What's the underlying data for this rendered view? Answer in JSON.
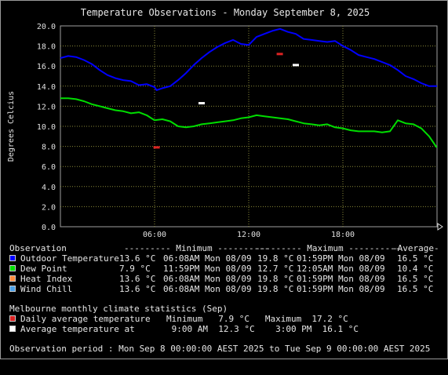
{
  "chart_data": {
    "type": "line",
    "title": "Temperature Observations - Monday September 8, 2025",
    "ylabel": "Degrees Celcius",
    "ylim": [
      0,
      20
    ],
    "yticks": [
      "0.0",
      "2.0",
      "4.0",
      "6.0",
      "8.0",
      "10.0",
      "12.0",
      "14.0",
      "16.0",
      "18.0",
      "20.0"
    ],
    "xlim": [
      0,
      24
    ],
    "xticks": [
      {
        "x": 6,
        "label": "06:00"
      },
      {
        "x": 12,
        "label": "12:00"
      },
      {
        "x": 18,
        "label": "18:00"
      }
    ],
    "grid": true,
    "series": [
      {
        "name": "Outdoor Temperature",
        "color": "#0000ff",
        "x": [
          0,
          0.5,
          1,
          1.5,
          2,
          2.5,
          3,
          3.5,
          4,
          4.5,
          5,
          5.5,
          6,
          6.13,
          6.5,
          7,
          7.5,
          8,
          8.5,
          9,
          9.5,
          10,
          10.5,
          11,
          11.5,
          12,
          12.5,
          13,
          13.5,
          14,
          14.5,
          15,
          15.5,
          16,
          16.5,
          17,
          17.5,
          18,
          18.5,
          19,
          19.5,
          20,
          20.5,
          21,
          21.5,
          22,
          22.5,
          23,
          23.5,
          24
        ],
        "y": [
          16.8,
          17.0,
          16.9,
          16.6,
          16.2,
          15.6,
          15.1,
          14.8,
          14.6,
          14.5,
          14.1,
          14.2,
          13.9,
          13.6,
          13.8,
          14.0,
          14.6,
          15.3,
          16.1,
          16.8,
          17.4,
          17.9,
          18.3,
          18.6,
          18.2,
          18.1,
          18.9,
          19.2,
          19.5,
          19.7,
          19.4,
          19.2,
          18.7,
          18.6,
          18.5,
          18.4,
          18.5,
          18.0,
          17.6,
          17.1,
          16.9,
          16.7,
          16.4,
          16.1,
          15.6,
          15.0,
          14.7,
          14.3,
          14.0,
          14.0
        ]
      },
      {
        "name": "Dew Point",
        "color": "#00dd00",
        "x": [
          0,
          0.5,
          1,
          1.5,
          2,
          2.5,
          3,
          3.5,
          4,
          4.5,
          5,
          5.5,
          6,
          6.5,
          7,
          7.5,
          8,
          8.5,
          9,
          9.5,
          10,
          10.5,
          11,
          11.5,
          12,
          12.5,
          13,
          13.5,
          14,
          14.5,
          15,
          15.5,
          16,
          16.5,
          17,
          17.5,
          18,
          18.5,
          19,
          19.5,
          20,
          20.5,
          21,
          21.5,
          22,
          22.5,
          23,
          23.5,
          23.98
        ],
        "y": [
          12.8,
          12.8,
          12.7,
          12.5,
          12.2,
          12.0,
          11.8,
          11.6,
          11.5,
          11.3,
          11.4,
          11.1,
          10.6,
          10.7,
          10.5,
          10.0,
          9.9,
          10.0,
          10.2,
          10.3,
          10.4,
          10.5,
          10.6,
          10.8,
          10.9,
          11.1,
          11.0,
          10.9,
          10.8,
          10.7,
          10.5,
          10.3,
          10.2,
          10.1,
          10.2,
          9.9,
          9.8,
          9.6,
          9.5,
          9.5,
          9.5,
          9.4,
          9.5,
          10.6,
          10.3,
          10.2,
          9.8,
          9.0,
          7.9
        ]
      }
    ],
    "climate": [
      {
        "name": "Daily average temperature",
        "color": "#dd2222",
        "markers": [
          {
            "x": 6.13,
            "y": 7.9
          },
          {
            "x": 13.98,
            "y": 17.2
          }
        ]
      },
      {
        "name": "Average temperature at",
        "color": "#ffffff",
        "markers": [
          {
            "x": 9.0,
            "y": 12.3
          },
          {
            "x": 15.0,
            "y": 16.1
          }
        ]
      }
    ]
  },
  "stats": {
    "header": {
      "observation": "Observation",
      "min": "--------- Minimum ----------",
      "max": "--------- Maximum ----------",
      "avg": "-Average-"
    },
    "rows": [
      {
        "name": "Outdoor Temperature",
        "color": "#0000ff",
        "min_val": "13.6 °C",
        "min_time": "06:08AM Mon 08/09",
        "max_val": "19.8 °C",
        "max_time": "01:59PM Mon 08/09",
        "avg": "16.5 °C"
      },
      {
        "name": "Dew Point",
        "color": "#00dd00",
        "min_val": "7.9 °C",
        "min_time": "11:59PM Mon 08/09",
        "max_val": "12.7 °C",
        "max_time": "12:05AM Mon 08/09",
        "avg": "10.4 °C"
      },
      {
        "name": "Heat Index",
        "color": "#ff8c3c",
        "min_val": "13.6 °C",
        "min_time": "06:08AM Mon 08/09",
        "max_val": "19.8 °C",
        "max_time": "01:59PM Mon 08/09",
        "avg": "16.5 °C"
      },
      {
        "name": "Wind Chill",
        "color": "#4aa0e8",
        "min_val": "13.6 °C",
        "min_time": "06:08AM Mon 08/09",
        "max_val": "19.8 °C",
        "max_time": "01:59PM Mon 08/09",
        "avg": "16.5 °C"
      }
    ]
  },
  "climate_stats": {
    "title": "Melbourne monthly climate statistics (Sep)",
    "daily": {
      "label": "Daily average temperature",
      "color": "#dd2222",
      "text": "Minimum   7.9 °C   Maximum  17.2 °C"
    },
    "at": {
      "label": "Average temperature at",
      "color": "#ffffff",
      "text": " 9:00 AM  12.3 °C    3:00 PM  16.1 °C"
    }
  },
  "period": "Observation period : Mon Sep 8 00:00:00 AEST 2025 to Tue Sep 9 00:00:00 AEST 2025"
}
